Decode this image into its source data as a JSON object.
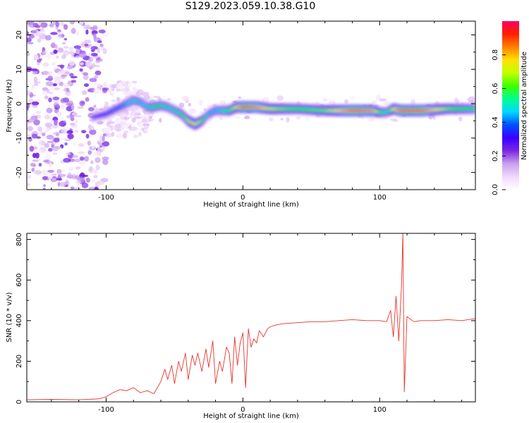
{
  "title": "S129.2023.059.10.38.G10",
  "chart_data": [
    {
      "type": "heatmap",
      "xlabel": "Height of straight line (km)",
      "ylabel": "Frequency (Hz)",
      "xlim": [
        -158,
        170
      ],
      "ylim": [
        -25,
        24
      ],
      "xticks": [
        -100,
        0,
        100
      ],
      "yticks": [
        -20,
        -10,
        0,
        10,
        20
      ],
      "colorbar": {
        "label": "Normalized spectral amplitude",
        "ticks": [
          0.0,
          0.2,
          0.4,
          0.6,
          0.8
        ],
        "range": [
          0,
          1
        ],
        "colors": [
          "#ffffff",
          "#f0d8fa",
          "#c9a0f0",
          "#7a28e0",
          "#3a00ff",
          "#0050ff",
          "#00d8ff",
          "#00ff90",
          "#40ff00",
          "#c0ff00",
          "#ffe000",
          "#ff8000",
          "#ff2000",
          "#ff0060"
        ]
      },
      "ridge": {
        "x": [
          -110,
          -100,
          -95,
          -90,
          -85,
          -80,
          -75,
          -70,
          -65,
          -60,
          -55,
          -50,
          -45,
          -40,
          -35,
          -30,
          -25,
          -20,
          -15,
          -10,
          -5,
          0,
          10,
          20,
          40,
          60,
          80,
          95,
          100,
          105,
          110,
          115,
          130,
          150,
          170
        ],
        "y": [
          -4,
          -3,
          -2,
          -1,
          0,
          1,
          0.5,
          -1,
          -1,
          -0.5,
          -1,
          -2,
          -3,
          -5,
          -6,
          -5,
          -3,
          -2,
          -2,
          -2,
          -1,
          -1,
          -1,
          -1.5,
          -1.5,
          -2,
          -2,
          -2,
          -2.5,
          -2.5,
          -1.5,
          -2,
          -2,
          -1.5,
          -1.5
        ],
        "amplitude": [
          0.3,
          0.35,
          0.4,
          0.4,
          0.45,
          0.5,
          0.45,
          0.5,
          0.55,
          0.55,
          0.5,
          0.5,
          0.6,
          0.7,
          0.75,
          0.65,
          0.45,
          0.45,
          0.5,
          0.6,
          0.75,
          0.9,
          0.85,
          0.7,
          0.6,
          0.65,
          0.9,
          0.85,
          0.6,
          0.5,
          0.75,
          0.9,
          0.9,
          0.65,
          0.55
        ]
      }
    },
    {
      "type": "line",
      "xlabel": "Height of straight line (km)",
      "ylabel": "SNR (10 * v/v)",
      "xlim": [
        -158,
        170
      ],
      "ylim": [
        0,
        830
      ],
      "xticks": [
        -100,
        0,
        100
      ],
      "yticks": [
        0,
        200,
        400,
        600,
        800
      ],
      "color": "#e8332a",
      "series": [
        {
          "x": [
            -158,
            -140,
            -120,
            -105,
            -100,
            -95,
            -90,
            -85,
            -80,
            -75,
            -70,
            -65,
            -60,
            -57,
            -55,
            -52,
            -50,
            -47,
            -45,
            -42,
            -40,
            -37,
            -35,
            -33,
            -30,
            -27,
            -25,
            -22,
            -20,
            -17,
            -15,
            -12,
            -10,
            -8,
            -6,
            -4,
            -2,
            0,
            2,
            4,
            6,
            8,
            10,
            12,
            15,
            18,
            20,
            25,
            30,
            40,
            50,
            60,
            70,
            80,
            90,
            100,
            105,
            108,
            110,
            112,
            114,
            116,
            117,
            118,
            120,
            125,
            130,
            140,
            150,
            160,
            170
          ],
          "y": [
            10,
            12,
            10,
            15,
            25,
            45,
            60,
            55,
            70,
            45,
            55,
            40,
            100,
            160,
            110,
            180,
            90,
            200,
            150,
            240,
            110,
            230,
            180,
            240,
            150,
            260,
            170,
            300,
            90,
            200,
            150,
            270,
            240,
            90,
            320,
            180,
            290,
            340,
            70,
            360,
            270,
            310,
            290,
            350,
            320,
            360,
            370,
            380,
            385,
            390,
            395,
            395,
            400,
            405,
            400,
            400,
            395,
            450,
            320,
            520,
            300,
            580,
            830,
            50,
            420,
            395,
            400,
            400,
            405,
            400,
            410
          ]
        }
      ]
    }
  ]
}
